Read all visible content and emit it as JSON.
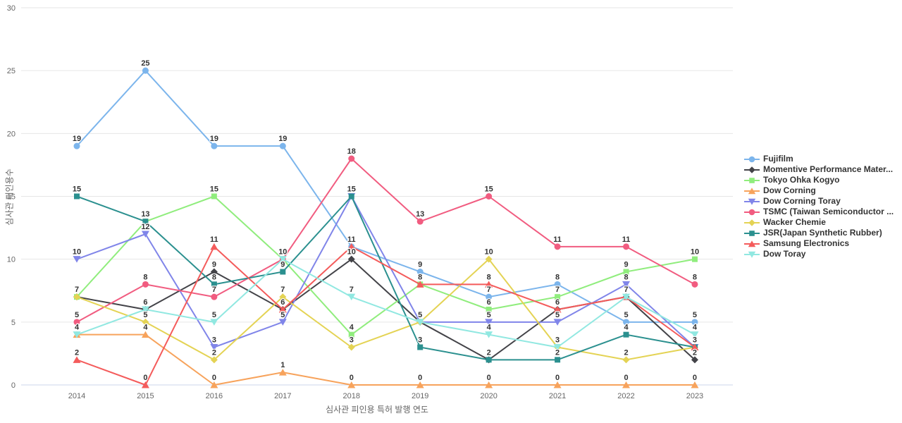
{
  "chart_data": {
    "type": "line",
    "title": "",
    "xlabel": "심사관 피인용 특허 발행 연도",
    "ylabel": "심사관 피인용수",
    "categories": [
      "2014",
      "2015",
      "2016",
      "2017",
      "2018",
      "2019",
      "2020",
      "2021",
      "2022",
      "2023"
    ],
    "ylim": [
      0,
      30
    ],
    "yticks": [
      0,
      5,
      10,
      15,
      20,
      25,
      30
    ],
    "grid": true,
    "legend_position": "right",
    "data_labels": true,
    "axis_line_color": "#ccd6eb",
    "grid_color": "#e6e6e6",
    "series": [
      {
        "name": "Fujifilm",
        "color": "#7cb5ec",
        "marker": "circle",
        "values": [
          19,
          25,
          19,
          19,
          11,
          9,
          7,
          8,
          5,
          5
        ]
      },
      {
        "name": "Momentive Performance Mater...",
        "color": "#434348",
        "marker": "diamond",
        "values": [
          7,
          6,
          9,
          6,
          10,
          5,
          2,
          6,
          7,
          2
        ]
      },
      {
        "name": "Tokyo Ohka Kogyo",
        "color": "#90ed7d",
        "marker": "square",
        "values": [
          7,
          13,
          15,
          10,
          4,
          8,
          6,
          7,
          9,
          10
        ]
      },
      {
        "name": "Dow Corning",
        "color": "#f7a35c",
        "marker": "triangle-up",
        "values": [
          4,
          4,
          0,
          1,
          0,
          0,
          0,
          0,
          0,
          0
        ]
      },
      {
        "name": "Dow Corning Toray",
        "color": "#8085e9",
        "marker": "triangle-down",
        "values": [
          10,
          12,
          3,
          5,
          15,
          5,
          5,
          5,
          8,
          3
        ]
      },
      {
        "name": "TSMC (Taiwan Semiconductor ...",
        "color": "#f15c80",
        "marker": "circle",
        "values": [
          5,
          8,
          7,
          10,
          18,
          13,
          15,
          11,
          11,
          8
        ]
      },
      {
        "name": "Wacker Chemie",
        "color": "#e4d354",
        "marker": "diamond",
        "values": [
          7,
          5,
          2,
          7,
          3,
          5,
          10,
          3,
          2,
          3
        ]
      },
      {
        "name": "JSR(Japan Synthetic Rubber)",
        "color": "#2b908f",
        "marker": "square",
        "values": [
          15,
          13,
          8,
          9,
          15,
          3,
          2,
          2,
          4,
          3
        ]
      },
      {
        "name": "Samsung Electronics",
        "color": "#f45b5b",
        "marker": "triangle-up",
        "values": [
          2,
          0,
          11,
          6,
          11,
          8,
          8,
          6,
          7,
          3
        ]
      },
      {
        "name": "Dow Toray",
        "color": "#91e8e1",
        "marker": "triangle-down",
        "values": [
          4,
          6,
          5,
          10,
          7,
          5,
          4,
          3,
          7,
          4
        ]
      }
    ]
  }
}
